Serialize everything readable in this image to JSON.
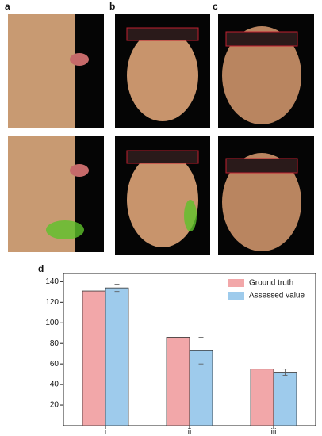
{
  "panels": {
    "a": "a",
    "b": "b",
    "c": "c",
    "d": "d"
  },
  "chart_data": {
    "type": "bar",
    "categories": [
      "i",
      "ii",
      "iii"
    ],
    "series": [
      {
        "name": "Ground truth",
        "color": "#f2a7a9",
        "values": [
          131,
          86,
          55
        ]
      },
      {
        "name": "Assessed value",
        "color": "#9ecbec",
        "values": [
          134,
          73,
          52
        ],
        "errors": [
          3.5,
          13,
          3
        ]
      }
    ],
    "ylim": [
      0,
      148
    ],
    "yticks": [
      20,
      40,
      60,
      80,
      100,
      120,
      140
    ],
    "legend": "upper-right"
  }
}
